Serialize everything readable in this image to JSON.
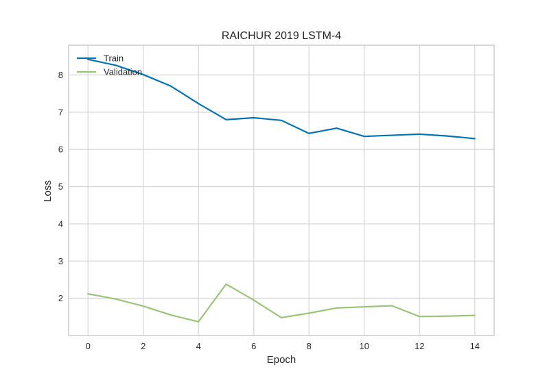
{
  "chart_data": {
    "type": "line",
    "title": "RAICHUR 2019 LSTM-4",
    "xlabel": "Epoch",
    "ylabel": "Loss",
    "xlim": [
      -0.7,
      14.7
    ],
    "ylim": [
      1.0,
      8.8
    ],
    "xticks": [
      0,
      2,
      4,
      6,
      8,
      10,
      12,
      14
    ],
    "yticks": [
      2,
      3,
      4,
      5,
      6,
      7,
      8
    ],
    "grid": true,
    "legend_position": "top-left",
    "x": [
      0,
      1,
      2,
      3,
      4,
      5,
      6,
      7,
      8,
      9,
      10,
      11,
      12,
      13,
      14
    ],
    "series": [
      {
        "name": "Train",
        "color": "#0072b2",
        "values": [
          8.42,
          8.26,
          8.01,
          7.7,
          7.23,
          6.8,
          6.85,
          6.78,
          6.43,
          6.57,
          6.35,
          6.38,
          6.41,
          6.36,
          6.29
        ]
      },
      {
        "name": "Validation",
        "color": "#9bc47a",
        "values": [
          2.12,
          1.98,
          1.79,
          1.55,
          1.37,
          2.38,
          1.95,
          1.48,
          1.6,
          1.74,
          1.77,
          1.8,
          1.51,
          1.52,
          1.54
        ]
      }
    ]
  }
}
